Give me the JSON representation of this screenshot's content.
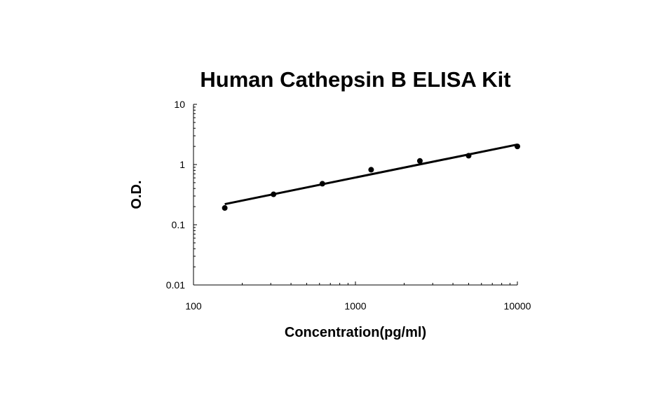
{
  "chart_data": {
    "type": "scatter",
    "title": "Human Cathepsin B ELISA Kit",
    "xlabel": "Concentration(pg/ml)",
    "ylabel": "O.D.",
    "x_scale": "log",
    "y_scale": "log",
    "xlim": [
      100,
      10000
    ],
    "ylim": [
      0.01,
      10
    ],
    "x_ticks": [
      "100",
      "1000",
      "10000"
    ],
    "y_ticks": [
      "0.01",
      "0.1",
      "1",
      "10"
    ],
    "grid": false,
    "legend": "none",
    "series": [
      {
        "x": [
          156,
          312,
          625,
          1250,
          2500,
          5000,
          10000
        ],
        "y": [
          0.19,
          0.32,
          0.48,
          0.82,
          1.15,
          1.4,
          2.0
        ]
      }
    ],
    "fit_line": {
      "x": [
        156,
        10000
      ],
      "y": [
        0.22,
        2.15
      ]
    }
  }
}
